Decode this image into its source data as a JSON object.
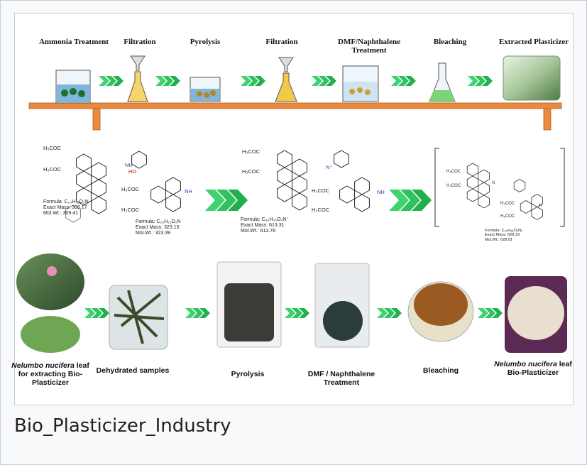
{
  "caption": "Bio_Plasticizer_Industry",
  "figure": {
    "top_steps": [
      "Ammonia Treatment",
      "Filtration",
      "Pyrolysis",
      "Filtration",
      "DMF/Naphthalene Treatment",
      "Bleaching",
      "Extracted Plasticizer"
    ],
    "compounds": [
      {
        "groups": [
          "H₃COC",
          "H₃COC",
          "NH"
        ],
        "formula": "Formula: C₂₀H₁₅O₂N",
        "mass": "Exact Mass: 309.17",
        "weight": "Mol.Wt.: 309.41"
      },
      {
        "groups": [
          "HO",
          "H₃COC",
          "H₃COC",
          "NH"
        ],
        "formula": "Formula: C₂₀H₂₁O₂N",
        "mass": "Exact Mass: 323.15",
        "weight": "Mol.Wt.: 323.39"
      },
      {
        "groups": [
          "H₃COC",
          "H₃COC",
          "N⁺",
          "H₃COC",
          "H₃COC",
          "NH"
        ],
        "formula": "Formula: C₄₀H₃₅O₄N⁺",
        "mass": "Exact Mass: 613.31",
        "weight": "Mol.Wt.: 613.78"
      },
      {
        "groups": [
          "H₃COC",
          "H₃COC",
          "N",
          "H₃COC",
          "H₃COC",
          "N"
        ],
        "formula": "Formula: C₄₁H₃₈O₄N₂",
        "mass": "Exact Mass: 628.33",
        "weight": "Mol.Wt.: 628.81"
      }
    ],
    "bottom_steps": [
      {
        "italic": "Nelumbo nucifera",
        "text": "leaf for extracting Bio-Plasticizer"
      },
      {
        "text": "Dehydrated samples"
      },
      {
        "text": "Pyrolysis"
      },
      {
        "text": "DMF / Naphthalene Treatment"
      },
      {
        "text": "Bleaching"
      },
      {
        "italic": "Nelumbo nucifera",
        "text": "leaf Bio-Plasticizer"
      }
    ]
  }
}
